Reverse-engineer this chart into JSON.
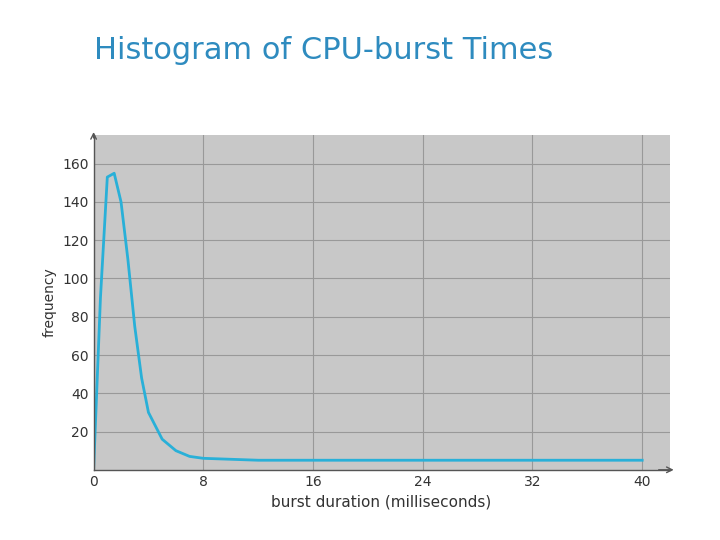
{
  "title": "Histogram of CPU-burst Times",
  "title_color": "#2e8bbf",
  "title_fontsize": 22,
  "title_fontweight": "normal",
  "xlabel": "burst duration (milliseconds)",
  "ylabel": "frequency",
  "xlabel_fontsize": 11,
  "ylabel_fontsize": 10,
  "tick_fontsize": 10,
  "background_color": "#ffffff",
  "plot_bg_color": "#c8c8c8",
  "grid_color": "#999999",
  "grid_linewidth": 0.8,
  "line_color": "#29b0d8",
  "line_width": 2.0,
  "xlim": [
    0,
    42
  ],
  "ylim": [
    0,
    175
  ],
  "xticks": [
    0,
    8,
    16,
    24,
    32,
    40
  ],
  "yticks": [
    20,
    40,
    60,
    80,
    100,
    120,
    140,
    160
  ],
  "curve_x": [
    0,
    0.5,
    1.0,
    1.5,
    2.0,
    2.5,
    3.0,
    3.5,
    4.0,
    5.0,
    6.0,
    7.0,
    8.0,
    10.0,
    12.0,
    16.0,
    20.0,
    24.0,
    28.0,
    32.0,
    36.0,
    40.0
  ],
  "curve_y": [
    0,
    90,
    153,
    155,
    140,
    110,
    75,
    48,
    30,
    16,
    10,
    7,
    6,
    5.5,
    5,
    5,
    5,
    5,
    5,
    5,
    5,
    5
  ],
  "spine_color": "#555555",
  "tick_color": "#333333",
  "label_color": "#333333"
}
